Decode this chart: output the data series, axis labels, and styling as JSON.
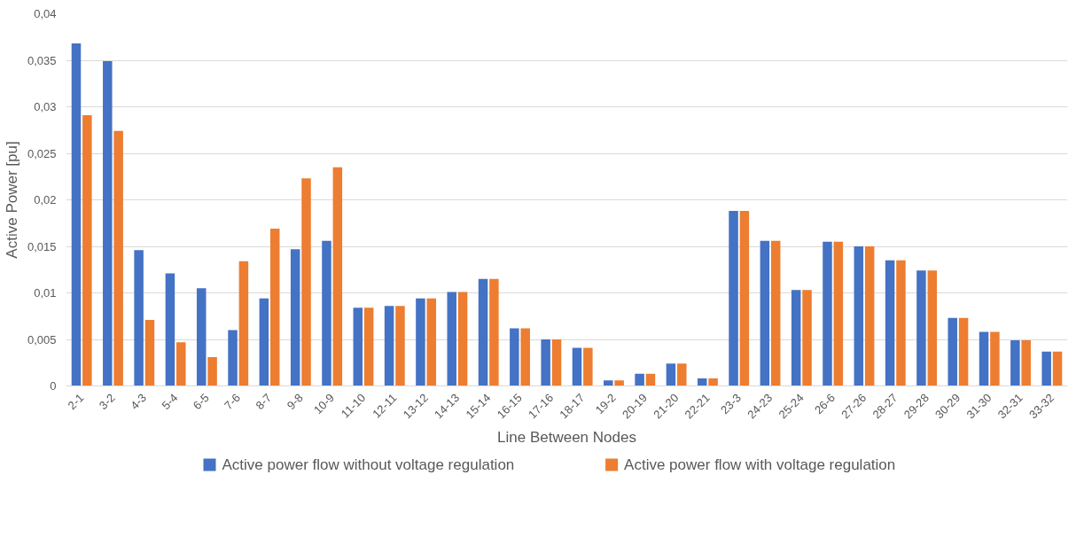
{
  "chart_data": {
    "type": "bar",
    "xlabel": "Line Between Nodes",
    "ylabel": "Active Power [pu]",
    "categories": [
      "2-1",
      "3-2",
      "4-3",
      "5-4",
      "6-5",
      "7-6",
      "8-7",
      "9-8",
      "10-9",
      "11-10",
      "12-11",
      "13-12",
      "14-13",
      "15-14",
      "16-15",
      "17-16",
      "18-17",
      "19-2",
      "20-19",
      "21-20",
      "22-21",
      "23-3",
      "24-23",
      "25-24",
      "26-6",
      "27-26",
      "28-27",
      "29-28",
      "30-29",
      "31-30",
      "32-31",
      "33-32"
    ],
    "series": [
      {
        "name": "Active power flow without voltage regulation",
        "color": "#4472c4",
        "values": [
          0.0368,
          0.0349,
          0.0146,
          0.0121,
          0.0105,
          0.006,
          0.0094,
          0.0147,
          0.0156,
          0.0084,
          0.0086,
          0.0094,
          0.0101,
          0.0115,
          0.0062,
          0.005,
          0.0041,
          0.0006,
          0.0013,
          0.0024,
          0.0008,
          0.0188,
          0.0156,
          0.0103,
          0.0155,
          0.015,
          0.0135,
          0.0124,
          0.0073,
          0.0058,
          0.0049,
          0.0037
        ]
      },
      {
        "name": "Active power flow with voltage regulation",
        "color": "#ed7d31",
        "values": [
          0.0291,
          0.0274,
          0.0071,
          0.0047,
          0.0031,
          0.0134,
          0.0169,
          0.0223,
          0.0235,
          0.0084,
          0.0086,
          0.0094,
          0.0101,
          0.0115,
          0.0062,
          0.005,
          0.0041,
          0.0006,
          0.0013,
          0.0024,
          0.0008,
          0.0188,
          0.0156,
          0.0103,
          0.0155,
          0.015,
          0.0135,
          0.0124,
          0.0073,
          0.0058,
          0.0049,
          0.0037
        ]
      }
    ],
    "ylim": [
      0,
      0.04
    ],
    "yticks": [
      0,
      {
        "value": 0.005,
        "label": "0,005"
      },
      {
        "value": 0.01,
        "label": "0,01"
      },
      {
        "value": 0.015,
        "label": "0,015"
      },
      {
        "value": 0.02,
        "label": "0,02"
      },
      {
        "value": 0.025,
        "label": "0,025"
      },
      {
        "value": 0.03,
        "label": "0,03"
      },
      {
        "value": 0.035,
        "label": "0,035"
      },
      {
        "value": 0.04,
        "label": "0,04"
      }
    ],
    "grid": "y",
    "legend": "bottom"
  }
}
